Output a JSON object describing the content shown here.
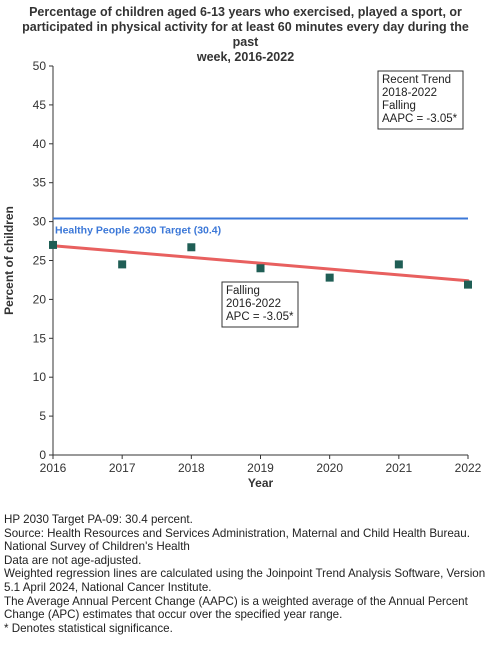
{
  "title_lines": [
    "Percentage of children aged 6-13 years who exercised, played a sport, or",
    "participated in physical activity for at least 60 minutes every day during the past",
    "week, 2016-2022"
  ],
  "chart_data": {
    "type": "scatter",
    "xlabel": "Year",
    "ylabel": "Percent of children",
    "xlim": [
      2016,
      2022
    ],
    "ylim": [
      0,
      50
    ],
    "x_ticks": [
      2016,
      2017,
      2018,
      2019,
      2020,
      2021,
      2022
    ],
    "y_ticks": [
      0,
      5,
      10,
      15,
      20,
      25,
      30,
      35,
      40,
      45,
      50
    ],
    "points": [
      {
        "x": 2016,
        "y": 27.0
      },
      {
        "x": 2017,
        "y": 24.5
      },
      {
        "x": 2018,
        "y": 26.7
      },
      {
        "x": 2019,
        "y": 24.0
      },
      {
        "x": 2020,
        "y": 22.8
      },
      {
        "x": 2021,
        "y": 24.5
      },
      {
        "x": 2022,
        "y": 21.9
      }
    ],
    "trend_line": {
      "x": [
        2016,
        2022
      ],
      "y": [
        26.9,
        22.4
      ],
      "color": "#e8605f"
    },
    "target": {
      "value": 30.4,
      "label": "Healthy People 2030 Target (30.4)",
      "color": "#3c78d8"
    },
    "marker_color": "#1f5e55",
    "annotations": [
      {
        "id": "recent-trend",
        "lines": [
          "Recent Trend",
          "2018-2022",
          "Falling",
          "AAPC = -3.05*"
        ]
      },
      {
        "id": "segment-trend",
        "lines": [
          "Falling",
          "2016-2022",
          "APC = -3.05*"
        ]
      }
    ]
  },
  "footnotes": [
    "HP 2030 Target PA-09: 30.4 percent.",
    "Source: Health Resources and Services Administration, Maternal and Child Health Bureau. National Survey of Children's Health",
    "Data are not age-adjusted.",
    "Weighted regression lines are calculated using the Joinpoint Trend Analysis Software, Version 5.1 April 2024, National Cancer Institute.",
    "The Average Annual Percent Change (AAPC) is a weighted average of the Annual Percent Change (APC) estimates that occur over the specified year range.",
    "* Denotes statistical significance."
  ]
}
